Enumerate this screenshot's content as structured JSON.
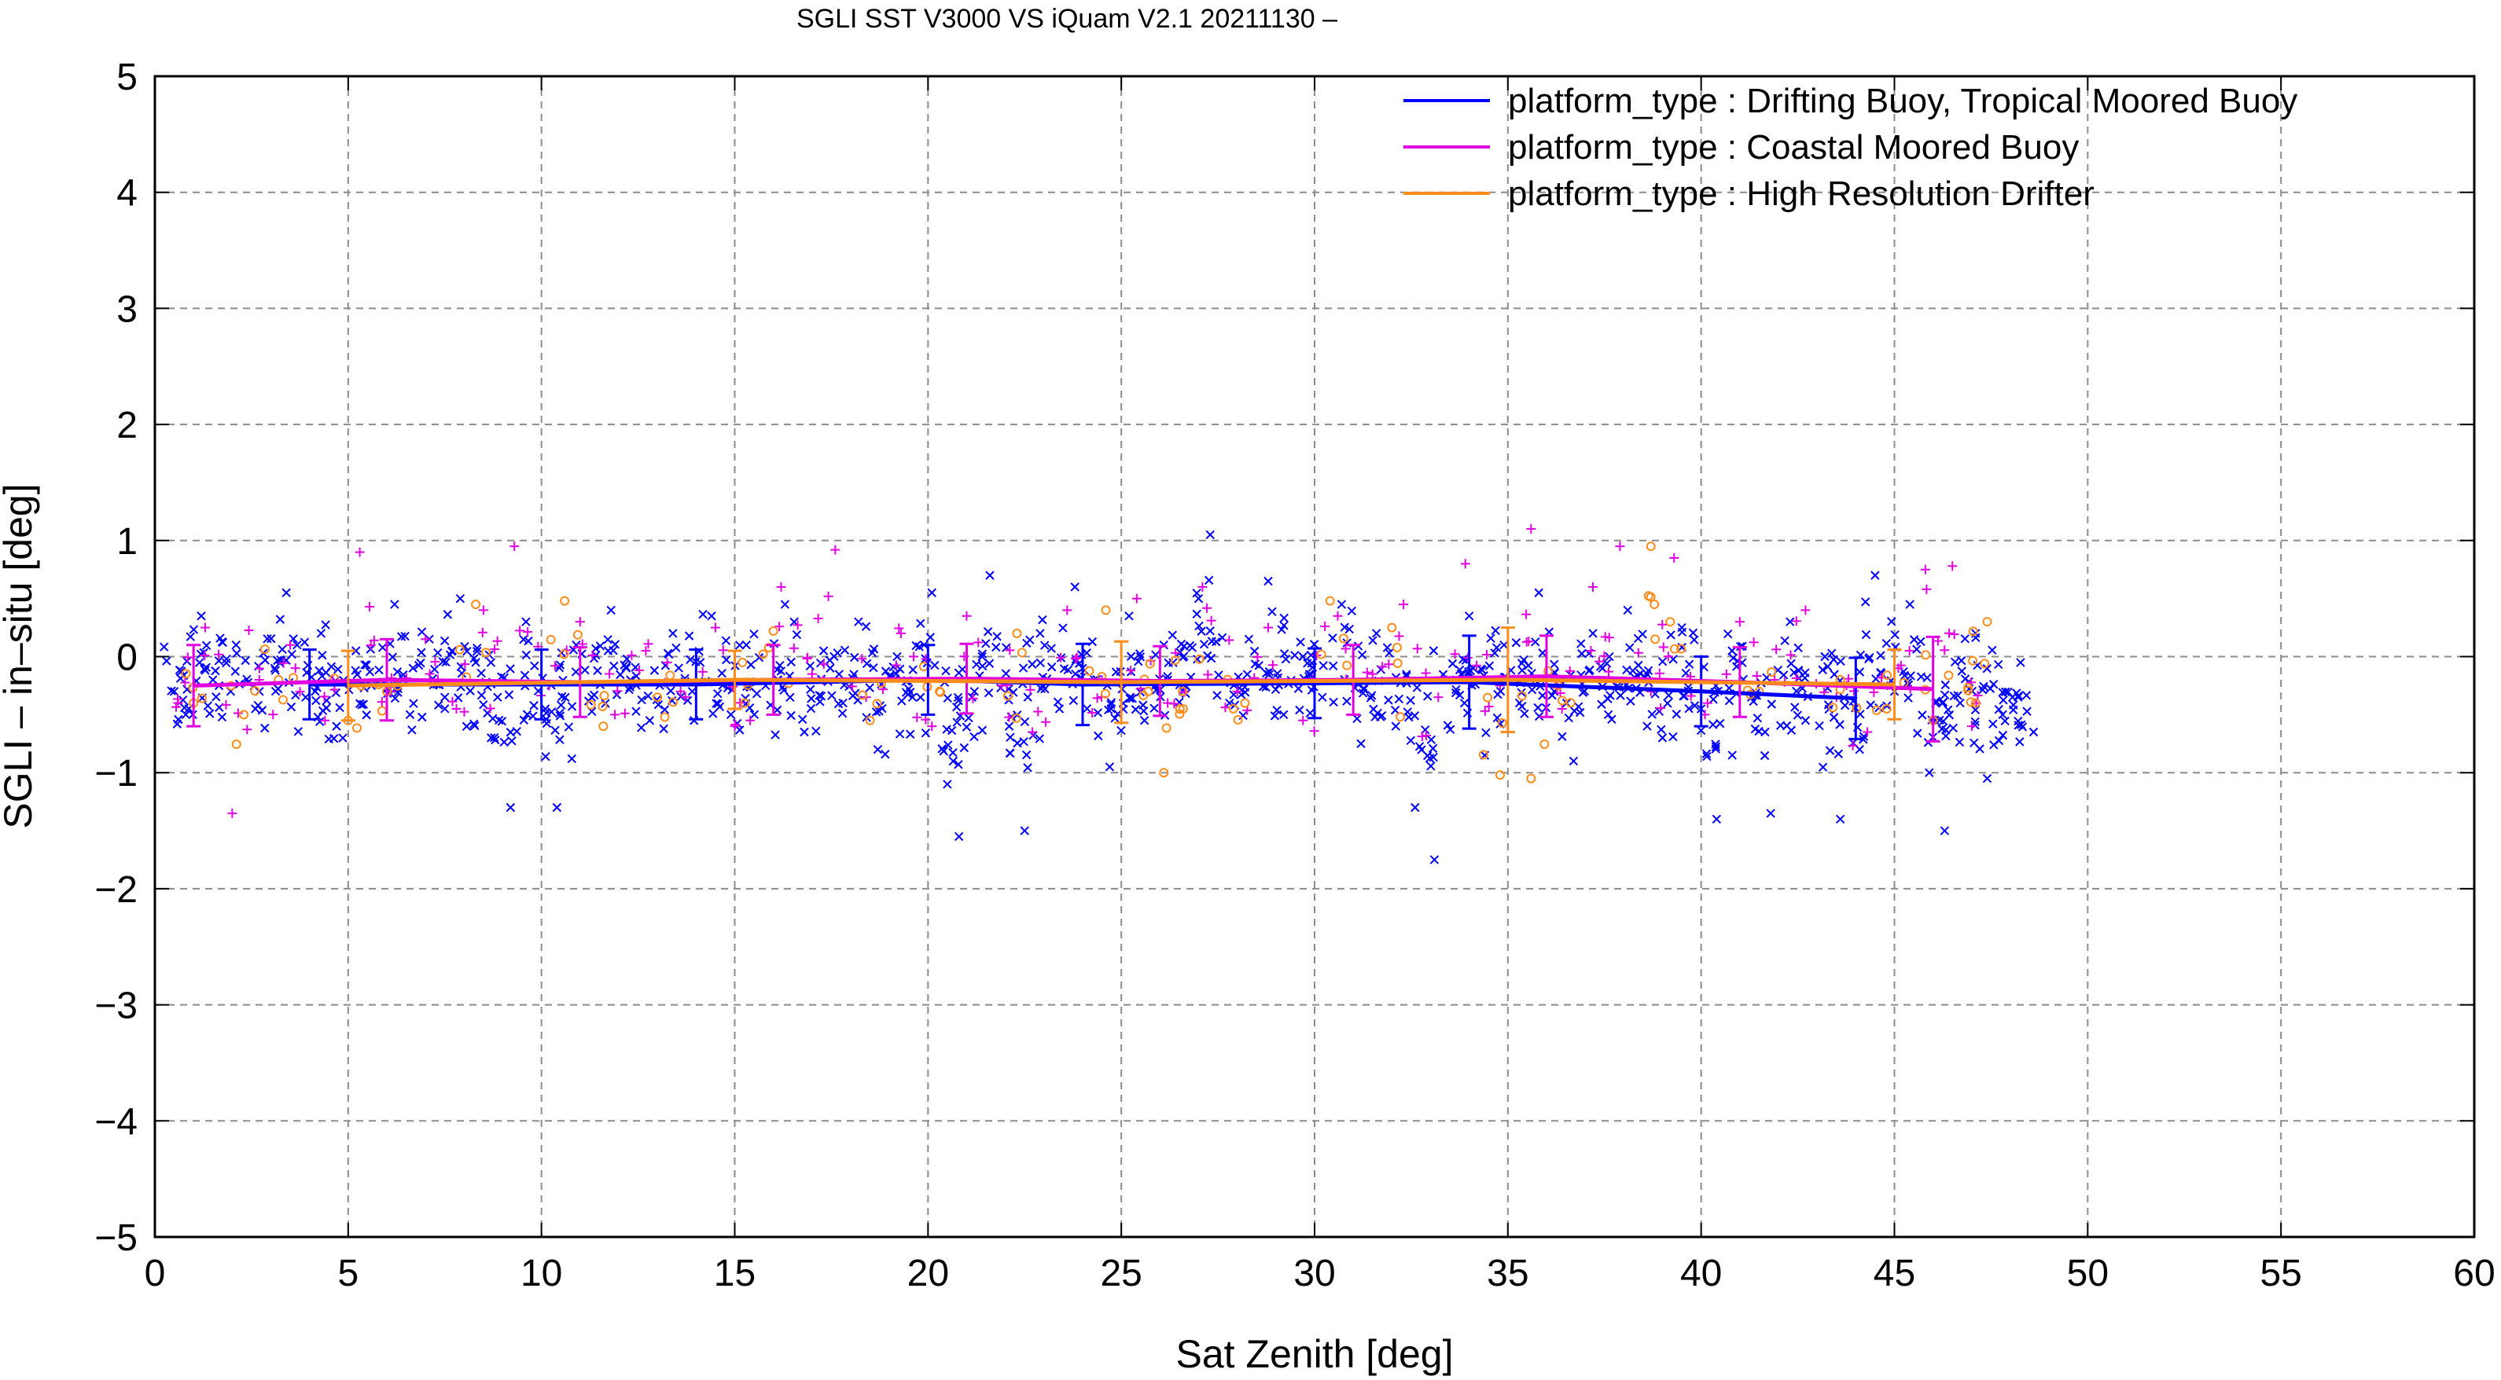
{
  "chart_data": {
    "type": "scatter",
    "title": "SGLI SST V3000 VS iQuam V2.1 20211130 –",
    "xlabel": "Sat Zenith [deg]",
    "ylabel": "SGLI – in–situ [deg]",
    "xlim": [
      0,
      60
    ],
    "ylim": [
      -5,
      5
    ],
    "xticks": [
      "0",
      "5",
      "10",
      "15",
      "20",
      "25",
      "30",
      "35",
      "40",
      "45",
      "50",
      "55",
      "60"
    ],
    "yticks": [
      "−5",
      "−4",
      "−3",
      "−2",
      "−1",
      "0",
      "1",
      "2",
      "3",
      "4",
      "5"
    ],
    "grid": true,
    "legend_position": "top-right",
    "series": [
      {
        "name": "platform_type : Drifting Buoy, Tropical Moored Buoy",
        "color": "#0000ff",
        "marker": "x",
        "scatter_points": [
          [
            0.5,
            -0.3
          ],
          [
            0.8,
            -0.5
          ],
          [
            1.2,
            0.35
          ],
          [
            1.5,
            -0.2
          ],
          [
            2.1,
            0.1
          ],
          [
            2.6,
            -0.45
          ],
          [
            3.1,
            -0.1
          ],
          [
            3.4,
            0.55
          ],
          [
            3.9,
            -0.35
          ],
          [
            4.3,
            0.2
          ],
          [
            4.7,
            -0.6
          ],
          [
            5.2,
            0.05
          ],
          [
            5.6,
            -0.25
          ],
          [
            6.2,
            0.45
          ],
          [
            6.6,
            -0.5
          ],
          [
            7.1,
            0.15
          ],
          [
            7.5,
            -0.35
          ],
          [
            7.9,
            0.5
          ],
          [
            8.3,
            -0.05
          ],
          [
            8.7,
            -0.7
          ],
          [
            9.2,
            -1.3
          ],
          [
            9.6,
            0.3
          ],
          [
            10.1,
            -0.45
          ],
          [
            10.4,
            -1.3
          ],
          [
            10.9,
            0.1
          ],
          [
            11.3,
            -0.35
          ],
          [
            11.8,
            0.4
          ],
          [
            12.3,
            -0.2
          ],
          [
            12.8,
            -0.55
          ],
          [
            13.4,
            0.2
          ],
          [
            13.9,
            -0.3
          ],
          [
            14.4,
            0.35
          ],
          [
            14.9,
            -0.5
          ],
          [
            15.3,
            0.1
          ],
          [
            15.8,
            -0.25
          ],
          [
            16.3,
            0.45
          ],
          [
            16.8,
            -0.65
          ],
          [
            17.3,
            0.05
          ],
          [
            17.8,
            -0.4
          ],
          [
            18.2,
            0.3
          ],
          [
            18.7,
            -0.8
          ],
          [
            19.2,
            0.0
          ],
          [
            19.6,
            -0.35
          ],
          [
            20.1,
            0.55
          ],
          [
            20.5,
            -1.1
          ],
          [
            20.8,
            -1.55
          ],
          [
            21.2,
            -0.3
          ],
          [
            21.6,
            0.7
          ],
          [
            22.1,
            -0.6
          ],
          [
            22.5,
            -1.5
          ],
          [
            22.9,
            0.2
          ],
          [
            23.4,
            -0.45
          ],
          [
            23.8,
            0.6
          ],
          [
            24.3,
            -0.2
          ],
          [
            24.7,
            -0.95
          ],
          [
            25.2,
            0.35
          ],
          [
            25.6,
            -0.55
          ],
          [
            26.1,
            0.1
          ],
          [
            26.6,
            -0.3
          ],
          [
            27.0,
            0.5
          ],
          [
            27.3,
            1.05
          ],
          [
            27.8,
            -0.4
          ],
          [
            28.3,
            0.15
          ],
          [
            28.8,
            0.65
          ],
          [
            29.2,
            -0.5
          ],
          [
            29.7,
            0.0
          ],
          [
            30.2,
            -0.35
          ],
          [
            30.7,
            0.45
          ],
          [
            31.2,
            -0.75
          ],
          [
            31.6,
            0.2
          ],
          [
            32.1,
            -0.6
          ],
          [
            32.6,
            -1.3
          ],
          [
            33.1,
            -1.75
          ],
          [
            33.5,
            -0.2
          ],
          [
            34.0,
            0.35
          ],
          [
            34.4,
            -0.85
          ],
          [
            34.9,
            0.1
          ],
          [
            35.3,
            -0.4
          ],
          [
            35.8,
            0.55
          ],
          [
            36.2,
            -0.3
          ],
          [
            36.7,
            -0.9
          ],
          [
            37.2,
            0.2
          ],
          [
            37.6,
            -0.5
          ],
          [
            38.1,
            0.4
          ],
          [
            38.6,
            -0.15
          ],
          [
            39.0,
            -0.7
          ],
          [
            39.5,
            0.25
          ],
          [
            40.0,
            -0.45
          ],
          [
            40.4,
            -1.4
          ],
          [
            40.8,
            0.05
          ],
          [
            41.3,
            -0.35
          ],
          [
            41.8,
            -1.35
          ],
          [
            42.3,
            0.3
          ],
          [
            42.7,
            -0.55
          ],
          [
            43.2,
            0.0
          ],
          [
            43.6,
            -1.4
          ],
          [
            44.1,
            -0.8
          ],
          [
            44.5,
            0.7
          ],
          [
            45.0,
            -0.3
          ],
          [
            45.4,
            0.45
          ],
          [
            45.9,
            -1.0
          ],
          [
            46.3,
            -1.5
          ],
          [
            46.7,
            -0.4
          ],
          [
            47.1,
            0.2
          ],
          [
            47.4,
            -1.05
          ],
          [
            47.8,
            -0.5
          ],
          [
            48.2,
            -0.35
          ],
          [
            48.6,
            -0.65
          ]
        ],
        "binned_mean": [
          [
            4,
            -0.24
          ],
          [
            10,
            -0.24
          ],
          [
            14,
            -0.24
          ],
          [
            20,
            -0.2
          ],
          [
            24,
            -0.24
          ],
          [
            30,
            -0.23
          ],
          [
            34,
            -0.22
          ],
          [
            40,
            -0.3
          ],
          [
            44,
            -0.36
          ]
        ],
        "binned_std": [
          [
            4,
            0.3
          ],
          [
            10,
            0.3
          ],
          [
            14,
            0.3
          ],
          [
            20,
            0.3
          ],
          [
            24,
            0.35
          ],
          [
            30,
            0.3
          ],
          [
            34,
            0.4
          ],
          [
            40,
            0.3
          ],
          [
            44,
            0.35
          ]
        ]
      },
      {
        "name": "platform_type : Coastal Moored Buoy",
        "color": "#e000e0",
        "marker": "+",
        "scatter_points": [
          [
            0.6,
            -0.4
          ],
          [
            1.3,
            0.25
          ],
          [
            2.0,
            -1.35
          ],
          [
            2.7,
            -0.2
          ],
          [
            3.5,
            0.1
          ],
          [
            4.4,
            -0.55
          ],
          [
            5.3,
            0.9
          ],
          [
            6.1,
            -0.3
          ],
          [
            7.0,
            0.15
          ],
          [
            7.8,
            -0.45
          ],
          [
            8.5,
            0.4
          ],
          [
            9.3,
            0.95
          ],
          [
            10.2,
            -0.25
          ],
          [
            11.0,
            0.3
          ],
          [
            11.9,
            -0.5
          ],
          [
            12.7,
            0.05
          ],
          [
            13.6,
            -0.3
          ],
          [
            14.5,
            0.25
          ],
          [
            15.4,
            -0.55
          ],
          [
            16.2,
            0.6
          ],
          [
            17.0,
            -0.15
          ],
          [
            17.6,
            0.92
          ],
          [
            18.4,
            -0.35
          ],
          [
            19.3,
            0.2
          ],
          [
            20.1,
            -0.6
          ],
          [
            21.0,
            0.35
          ],
          [
            21.9,
            -0.25
          ],
          [
            22.7,
            -0.65
          ],
          [
            23.6,
            0.4
          ],
          [
            24.5,
            -0.2
          ],
          [
            25.4,
            0.5
          ],
          [
            26.2,
            -0.4
          ],
          [
            27.1,
            0.6
          ],
          [
            28.0,
            -0.3
          ],
          [
            28.8,
            0.25
          ],
          [
            29.7,
            -0.55
          ],
          [
            30.6,
            0.35
          ],
          [
            31.5,
            -0.15
          ],
          [
            32.3,
            0.45
          ],
          [
            33.2,
            -0.35
          ],
          [
            33.9,
            0.8
          ],
          [
            34.8,
            -0.25
          ],
          [
            35.6,
            1.1
          ],
          [
            36.4,
            -0.45
          ],
          [
            37.2,
            0.6
          ],
          [
            37.9,
            0.95
          ],
          [
            38.7,
            -0.3
          ],
          [
            39.3,
            0.85
          ],
          [
            40.1,
            -0.5
          ],
          [
            41.0,
            0.3
          ],
          [
            41.9,
            -0.2
          ],
          [
            42.7,
            0.4
          ],
          [
            43.5,
            -0.35
          ],
          [
            44.3,
            -0.65
          ],
          [
            45.1,
            -0.1
          ],
          [
            45.8,
            0.75
          ],
          [
            46.5,
            0.78
          ],
          [
            47.0,
            -0.6
          ]
        ],
        "binned_mean": [
          [
            1,
            -0.25
          ],
          [
            6,
            -0.2
          ],
          [
            11,
            -0.22
          ],
          [
            16,
            -0.2
          ],
          [
            21,
            -0.19
          ],
          [
            26,
            -0.21
          ],
          [
            31,
            -0.2
          ],
          [
            36,
            -0.17
          ],
          [
            41,
            -0.22
          ],
          [
            46,
            -0.28
          ]
        ],
        "binned_std": [
          [
            1,
            0.35
          ],
          [
            6,
            0.35
          ],
          [
            11,
            0.3
          ],
          [
            16,
            0.3
          ],
          [
            21,
            0.3
          ],
          [
            26,
            0.3
          ],
          [
            31,
            0.3
          ],
          [
            36,
            0.35
          ],
          [
            41,
            0.3
          ],
          [
            46,
            0.45
          ]
        ]
      },
      {
        "name": "platform_type : High Resolution Drifter",
        "color": "#ff8c1a",
        "marker": "o",
        "scatter_points": [
          [
            1.0,
            -0.4
          ],
          [
            2.3,
            -0.5
          ],
          [
            3.2,
            -0.2
          ],
          [
            5.0,
            -0.55
          ],
          [
            6.0,
            -0.3
          ],
          [
            8.3,
            0.45
          ],
          [
            10.6,
            0.48
          ],
          [
            11.6,
            -0.6
          ],
          [
            13.0,
            -0.35
          ],
          [
            15.2,
            -0.05
          ],
          [
            16.0,
            0.22
          ],
          [
            18.5,
            -0.55
          ],
          [
            20.3,
            -0.3
          ],
          [
            22.3,
            0.2
          ],
          [
            24.6,
            0.4
          ],
          [
            25.7,
            -0.3
          ],
          [
            26.1,
            -1.0
          ],
          [
            26.6,
            -0.45
          ],
          [
            28.2,
            -0.4
          ],
          [
            30.4,
            0.48
          ],
          [
            32.0,
            0.25
          ],
          [
            34.8,
            -1.02
          ],
          [
            35.6,
            -1.05
          ],
          [
            36.3,
            -0.25
          ],
          [
            38.7,
            0.95
          ],
          [
            39.2,
            0.3
          ],
          [
            41.5,
            -0.3
          ],
          [
            43.6,
            -0.2
          ],
          [
            44.8,
            -0.45
          ],
          [
            46.0,
            -0.55
          ],
          [
            47.4,
            0.3
          ],
          [
            47.1,
            -0.4
          ]
        ],
        "binned_mean": [
          [
            5,
            -0.25
          ],
          [
            15,
            -0.2
          ],
          [
            25,
            -0.22
          ],
          [
            35,
            -0.2
          ],
          [
            45,
            -0.24
          ]
        ],
        "binned_std": [
          [
            5,
            0.3
          ],
          [
            15,
            0.25
          ],
          [
            25,
            0.35
          ],
          [
            35,
            0.45
          ],
          [
            45,
            0.3
          ]
        ]
      }
    ]
  }
}
